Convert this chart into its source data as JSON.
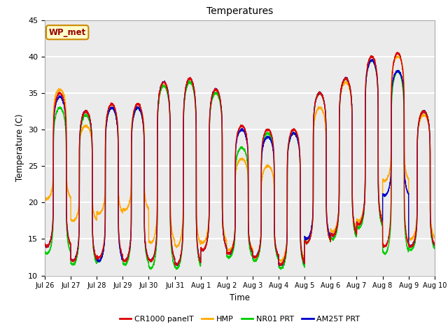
{
  "title": "Temperatures",
  "xlabel": "Time",
  "ylabel": "Temperature (C)",
  "ylim": [
    10,
    45
  ],
  "xlim": [
    0,
    15
  ],
  "plot_bg_color": "#ebebeb",
  "grid_color": "white",
  "annotation_text": "WP_met",
  "annotation_bg": "#ffffcc",
  "annotation_border": "#cc8800",
  "annotation_text_color": "#990000",
  "series_colors": {
    "CR1000 panelT": "#dd0000",
    "HMP": "#ffaa00",
    "NR01 PRT": "#00cc00",
    "AM25T PRT": "#0000cc"
  },
  "xtick_labels": [
    "Jul 26",
    "Jul 27",
    "Jul 28",
    "Jul 29",
    "Jul 30",
    "Jul 31",
    "Aug 1",
    "Aug 2",
    "Aug 3",
    "Aug 4",
    "Aug 5",
    "Aug 6",
    "Aug 7",
    "Aug 8",
    "Aug 9",
    "Aug 10"
  ],
  "ytick_positions": [
    10,
    15,
    20,
    25,
    30,
    35,
    40,
    45
  ],
  "linewidth": 1.0
}
